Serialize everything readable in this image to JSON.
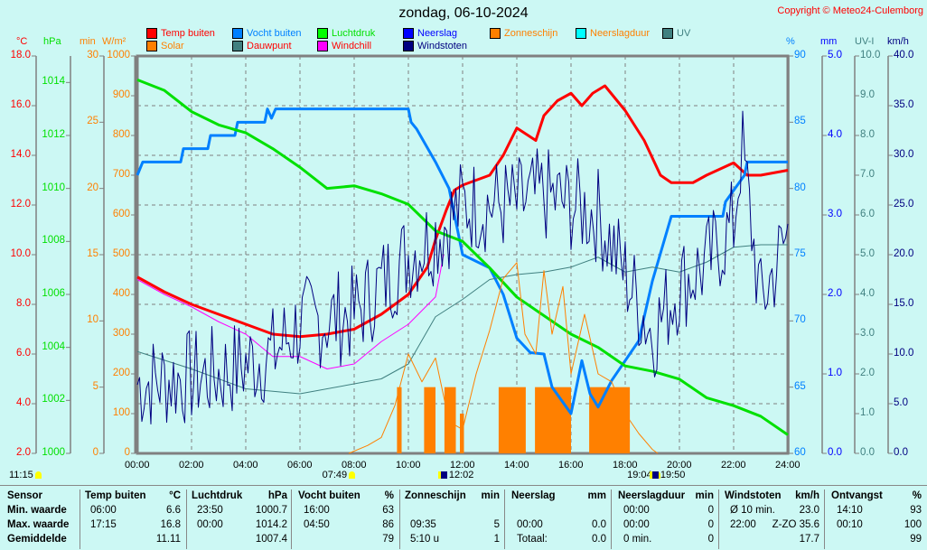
{
  "title": "zondag, 06-10-2024",
  "copyright": "Copyright © Meteo24-Culemborg",
  "legend": [
    {
      "label": "Temp buiten",
      "color": "#ff0000",
      "text_color": "#ff0000"
    },
    {
      "label": "Vocht buiten",
      "color": "#0080ff",
      "text_color": "#0080ff"
    },
    {
      "label": "Luchtdruk",
      "color": "#00ff00",
      "text_color": "#00e000"
    },
    {
      "label": "Neerslag",
      "color": "#0000ff",
      "text_color": "#0000ff"
    },
    {
      "label": "Zonneschijn",
      "color": "#ff8000",
      "text_color": "#ff8000"
    },
    {
      "label": "Neerslagduur",
      "color": "#00ffff",
      "text_color": "#ff8000"
    },
    {
      "label": "UV",
      "color": "#408080",
      "text_color": "#408080"
    },
    {
      "label": "Solar",
      "color": "#ff8000",
      "text_color": "#ff8000"
    },
    {
      "label": "Dauwpunt",
      "color": "#408080",
      "text_color": "#ff0000"
    },
    {
      "label": "Windchill",
      "color": "#ff00ff",
      "text_color": "#ff0000"
    },
    {
      "label": "Windstoten",
      "color": "#000080",
      "text_color": "#000080"
    }
  ],
  "axes": {
    "temp": {
      "unit": "°C",
      "range": [
        2,
        18
      ],
      "ticks": [
        "18.0",
        "16.0",
        "14.0",
        "12.0",
        "10.0",
        "8.0",
        "6.0",
        "4.0",
        "2.0"
      ],
      "color": "#ff0000"
    },
    "pressure": {
      "unit": "hPa",
      "range": [
        1000,
        1015
      ],
      "ticks": [
        "1014",
        "1012",
        "1010",
        "1008",
        "1006",
        "1004",
        "1002",
        "1000"
      ],
      "color": "#00e000"
    },
    "minutes": {
      "unit": "min",
      "range": [
        0,
        30
      ],
      "ticks": [
        "30",
        "25",
        "20",
        "15",
        "10",
        "5",
        "0"
      ],
      "color": "#ff8000"
    },
    "solar": {
      "unit": "W/m²",
      "range": [
        0,
        1000
      ],
      "ticks": [
        "1000",
        "900",
        "800",
        "700",
        "600",
        "500",
        "400",
        "300",
        "200",
        "100",
        "0"
      ],
      "color": "#ff8000"
    },
    "humidity": {
      "unit": "%",
      "range": [
        60,
        90
      ],
      "ticks": [
        "90",
        "85",
        "80",
        "75",
        "70",
        "65",
        "60"
      ],
      "color": "#0080ff"
    },
    "rain": {
      "unit": "mm",
      "range": [
        0,
        5
      ],
      "ticks": [
        "5.0",
        "4.0",
        "3.0",
        "2.0",
        "1.0",
        "0.0"
      ],
      "color": "#0000ff"
    },
    "uv": {
      "unit": "UV-I",
      "range": [
        0,
        10
      ],
      "ticks": [
        "10.0",
        "9.0",
        "8.0",
        "7.0",
        "6.0",
        "5.0",
        "4.0",
        "3.0",
        "2.0",
        "1.0",
        "0.0"
      ],
      "color": "#408080"
    },
    "wind": {
      "unit": "km/h",
      "range": [
        0,
        40
      ],
      "ticks": [
        "40.0",
        "35.0",
        "30.0",
        "25.0",
        "20.0",
        "15.0",
        "10.0",
        "5.0",
        "0.0"
      ],
      "color": "#000080"
    }
  },
  "x_ticks": [
    "00:00",
    "02:00",
    "04:00",
    "06:00",
    "08:00",
    "10:00",
    "12:00",
    "14:00",
    "16:00",
    "18:00",
    "20:00",
    "22:00",
    "24:00"
  ],
  "markers": [
    {
      "label": "11:15",
      "time": -0.6,
      "icon": "sun-icon"
    },
    {
      "label": "07:49",
      "time": 7.82,
      "icon": "sunrise-icon"
    },
    {
      "label": "12:02",
      "time": 12.03,
      "icon": "moonrise-icon"
    },
    {
      "label": "19:04",
      "time": 19.07,
      "icon": "sunset-icon"
    },
    {
      "label": "19:50",
      "time": 19.83,
      "icon": "moonset-icon"
    }
  ],
  "chart_data": {
    "type": "line",
    "title": "zondag, 06-10-2024",
    "x_range_hours": [
      0,
      24
    ],
    "grid": true,
    "legend_position": "top",
    "series": [
      {
        "name": "Temp buiten",
        "axis": "temp",
        "color": "#ff0000",
        "points": [
          [
            0,
            9.1
          ],
          [
            1,
            8.5
          ],
          [
            2,
            8
          ],
          [
            3,
            7.6
          ],
          [
            4,
            7.2
          ],
          [
            5,
            6.8
          ],
          [
            6,
            6.7
          ],
          [
            7,
            6.8
          ],
          [
            8,
            7
          ],
          [
            9,
            7.6
          ],
          [
            10,
            8.4
          ],
          [
            10.7,
            9.5
          ],
          [
            11,
            10.6
          ],
          [
            11.4,
            11.8
          ],
          [
            11.7,
            12.6
          ],
          [
            12,
            12.8
          ],
          [
            13,
            13.2
          ],
          [
            13.5,
            14
          ],
          [
            14,
            15.1
          ],
          [
            14.7,
            14.6
          ],
          [
            15,
            15.6
          ],
          [
            15.5,
            16.2
          ],
          [
            16,
            16.5
          ],
          [
            16.4,
            16
          ],
          [
            16.8,
            16.5
          ],
          [
            17.25,
            16.8
          ],
          [
            18,
            15.8
          ],
          [
            18.7,
            14.6
          ],
          [
            19.3,
            13.2
          ],
          [
            19.7,
            12.9
          ],
          [
            20.5,
            12.9
          ],
          [
            21,
            13.2
          ],
          [
            22,
            13.7
          ],
          [
            22.5,
            13.2
          ],
          [
            23,
            13.2
          ],
          [
            24,
            13.4
          ]
        ]
      },
      {
        "name": "Vocht buiten",
        "axis": "humidity",
        "color": "#0080ff",
        "points": [
          [
            0,
            81
          ],
          [
            0.2,
            82
          ],
          [
            1.6,
            82
          ],
          [
            1.7,
            83
          ],
          [
            2.6,
            83
          ],
          [
            2.7,
            84
          ],
          [
            3.6,
            84
          ],
          [
            3.7,
            85
          ],
          [
            4.7,
            85
          ],
          [
            4.8,
            86
          ],
          [
            4.95,
            85.3
          ],
          [
            5.1,
            86
          ],
          [
            10,
            86
          ],
          [
            10.1,
            85
          ],
          [
            10.3,
            84.5
          ],
          [
            11,
            82
          ],
          [
            11.5,
            80
          ],
          [
            11.8,
            77
          ],
          [
            12,
            75
          ],
          [
            13,
            74
          ],
          [
            13.5,
            72
          ],
          [
            14,
            68.7
          ],
          [
            14.5,
            67.6
          ],
          [
            15,
            67.5
          ],
          [
            15.3,
            65
          ],
          [
            16,
            63
          ],
          [
            16.4,
            67
          ],
          [
            16.7,
            64.5
          ],
          [
            17,
            63.5
          ],
          [
            17.5,
            65.5
          ],
          [
            18.5,
            68.5
          ],
          [
            19,
            73
          ],
          [
            19.7,
            77.9
          ],
          [
            21.6,
            77.9
          ],
          [
            21.7,
            79
          ],
          [
            22.4,
            81
          ],
          [
            22.5,
            82
          ],
          [
            24,
            82
          ]
        ]
      },
      {
        "name": "Luchtdruk",
        "axis": "pressure",
        "color": "#00e000",
        "points": [
          [
            0,
            1014.1
          ],
          [
            1,
            1013.7
          ],
          [
            2,
            1012.9
          ],
          [
            3,
            1012.4
          ],
          [
            4,
            1012.1
          ],
          [
            5,
            1011.5
          ],
          [
            6,
            1010.8
          ],
          [
            7,
            1010
          ],
          [
            8,
            1010.1
          ],
          [
            9,
            1009.8
          ],
          [
            10,
            1009.4
          ],
          [
            11,
            1008.4
          ],
          [
            12,
            1008
          ],
          [
            13,
            1007
          ],
          [
            14,
            1005.9
          ],
          [
            15,
            1005.2
          ],
          [
            16,
            1004.5
          ],
          [
            17,
            1004
          ],
          [
            18,
            1003.3
          ],
          [
            19,
            1003.1
          ],
          [
            20,
            1002.8
          ],
          [
            21,
            1002.1
          ],
          [
            22,
            1001.8
          ],
          [
            23,
            1001.4
          ],
          [
            24,
            1000.7
          ]
        ]
      },
      {
        "name": "Dauwpunt",
        "axis": "temp",
        "color": "#408080",
        "points": [
          [
            0,
            6.1
          ],
          [
            2,
            5.4
          ],
          [
            4,
            4.6
          ],
          [
            6,
            4.4
          ],
          [
            8,
            4.8
          ],
          [
            9,
            5
          ],
          [
            10,
            5.6
          ],
          [
            11,
            7.5
          ],
          [
            12,
            8.2
          ],
          [
            13,
            9
          ],
          [
            14,
            9.2
          ],
          [
            15,
            9.3
          ],
          [
            16,
            9.5
          ],
          [
            17,
            9.9
          ],
          [
            18,
            9.3
          ],
          [
            19,
            9.5
          ],
          [
            20,
            9.3
          ],
          [
            21,
            9.7
          ],
          [
            22,
            10.3
          ],
          [
            23,
            10.4
          ],
          [
            24,
            10.4
          ]
        ]
      },
      {
        "name": "Windchill",
        "axis": "temp",
        "color": "#ff00ff",
        "points": [
          [
            0,
            9
          ],
          [
            1,
            8.4
          ],
          [
            2,
            7.9
          ],
          [
            3,
            7.3
          ],
          [
            4,
            6.8
          ],
          [
            5,
            5.9
          ],
          [
            6,
            5.9
          ],
          [
            7,
            5.4
          ],
          [
            8,
            5.6
          ],
          [
            9,
            6.5
          ],
          [
            10,
            7.2
          ],
          [
            11,
            8.3
          ],
          [
            11.3,
            10
          ]
        ]
      },
      {
        "name": "Solar",
        "axis": "solar",
        "color": "#ff8000",
        "points": [
          [
            7.8,
            0
          ],
          [
            8.5,
            20
          ],
          [
            9,
            40
          ],
          [
            9.5,
            120
          ],
          [
            10,
            250
          ],
          [
            10.5,
            180
          ],
          [
            11,
            240
          ],
          [
            11.5,
            80
          ],
          [
            12,
            60
          ],
          [
            12.5,
            200
          ],
          [
            13,
            310
          ],
          [
            13.5,
            440
          ],
          [
            14,
            480
          ],
          [
            14.3,
            300
          ],
          [
            14.7,
            250
          ],
          [
            15,
            460
          ],
          [
            15.3,
            300
          ],
          [
            15.7,
            420
          ],
          [
            16,
            200
          ],
          [
            16.5,
            350
          ],
          [
            17,
            200
          ],
          [
            17.5,
            180
          ],
          [
            18,
            100
          ],
          [
            18.5,
            50
          ],
          [
            19,
            10
          ],
          [
            19.2,
            0
          ]
        ]
      },
      {
        "name": "Windstoten",
        "axis": "wind",
        "color": "#000080",
        "base": [
          [
            0,
            7
          ],
          [
            3,
            8
          ],
          [
            5,
            10
          ],
          [
            6,
            13
          ],
          [
            8,
            14
          ],
          [
            9,
            17
          ],
          [
            10,
            20
          ],
          [
            11,
            22
          ],
          [
            12,
            25
          ],
          [
            14,
            25
          ],
          [
            15,
            26
          ],
          [
            16,
            25
          ],
          [
            17,
            24
          ],
          [
            18,
            18
          ],
          [
            19,
            12
          ],
          [
            20,
            17
          ],
          [
            21,
            19
          ],
          [
            22,
            23
          ],
          [
            22.3,
            31
          ],
          [
            23,
            15
          ],
          [
            24,
            22
          ]
        ]
      }
    ],
    "sunshine_bars": [
      [
        9.58,
        9.75,
        5
      ],
      [
        10.58,
        11,
        5
      ],
      [
        11.33,
        11.75,
        5
      ],
      [
        11.9,
        12.05,
        3
      ],
      [
        13.33,
        14.33,
        5
      ],
      [
        14.67,
        16,
        5
      ],
      [
        16.67,
        18.17,
        5
      ]
    ]
  },
  "table": {
    "headers": [
      [
        "Sensor",
        ""
      ],
      [
        "Temp buiten",
        "°C"
      ],
      [
        "Luchtdruk",
        "hPa"
      ],
      [
        "Vocht buiten",
        "%"
      ],
      [
        "Zonneschijn",
        "min"
      ],
      [
        "Neerslag",
        "mm"
      ],
      [
        "Neerslagduur",
        "min"
      ],
      [
        "Windstoten",
        "km/h"
      ],
      [
        "Ontvangst",
        "%"
      ]
    ],
    "rows": [
      {
        "label": "Min. waarde",
        "cells": [
          [
            "06:00",
            "6.6"
          ],
          [
            "23:50",
            "1000.7"
          ],
          [
            "16:00",
            "63"
          ],
          [
            "",
            ""
          ],
          [
            "",
            ""
          ],
          [
            "00:00",
            "0"
          ],
          [
            "Ø 10 min.",
            "23.0"
          ],
          [
            "14:10",
            "93"
          ]
        ]
      },
      {
        "label": "Max. waarde",
        "cells": [
          [
            "17:15",
            "16.8"
          ],
          [
            "00:00",
            "1014.2"
          ],
          [
            "04:50",
            "86"
          ],
          [
            "09:35",
            "5"
          ],
          [
            "00:00",
            "0.0"
          ],
          [
            "00:00",
            "0"
          ],
          [
            "22:00",
            "Z-ZO 35.6"
          ],
          [
            "00:10",
            "100"
          ]
        ]
      },
      {
        "label": "Gemiddelde",
        "cells": [
          [
            "",
            "11.11"
          ],
          [
            "",
            "1007.4"
          ],
          [
            "",
            "79"
          ],
          [
            "5:10 u",
            "1"
          ],
          [
            "Totaal:",
            "0.0"
          ],
          [
            "0 min.",
            "0"
          ],
          [
            "",
            "17.7"
          ],
          [
            "",
            "99"
          ]
        ]
      }
    ]
  }
}
